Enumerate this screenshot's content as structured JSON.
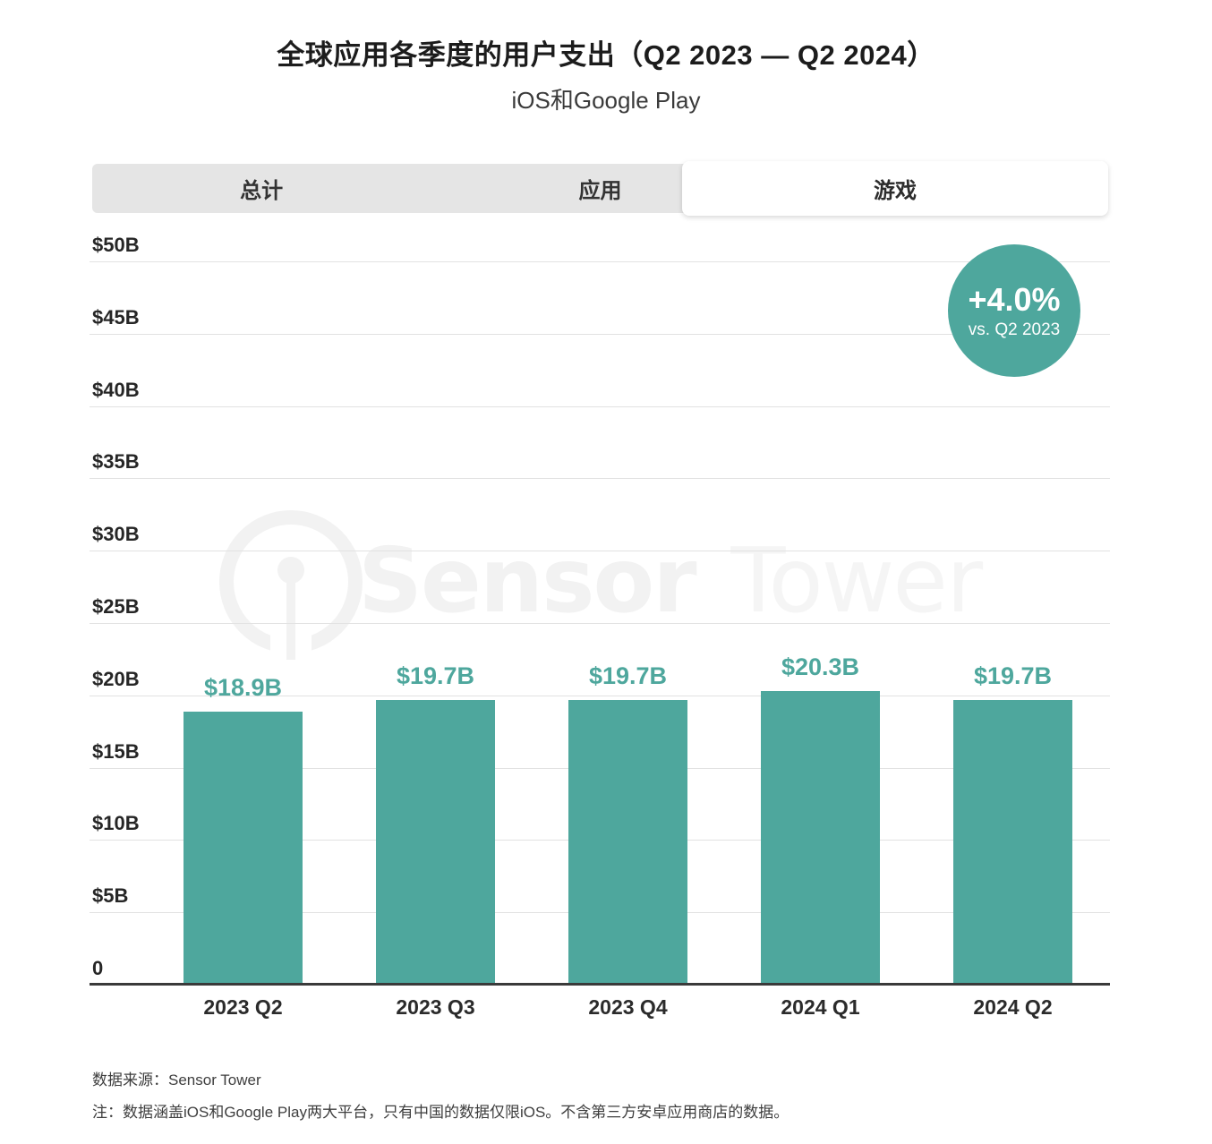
{
  "title": "全球应用各季度的用户支出（Q2 2023 — Q2 2024）",
  "subtitle": "iOS和Google Play",
  "tabs": [
    {
      "label": "总计",
      "selected": false
    },
    {
      "label": "应用",
      "selected": false
    },
    {
      "label": "游戏",
      "selected": true
    }
  ],
  "badge": {
    "value": "+4.0%",
    "comparison": "vs. Q2 2023"
  },
  "watermark": {
    "icon": "sensor-tower-logo",
    "brand_bold": "Sensor",
    "brand_light": "Tower"
  },
  "chart_data": {
    "type": "bar",
    "title": "全球应用各季度的用户支出（Q2 2023 — Q2 2024）",
    "subtitle": "iOS和Google Play",
    "categories": [
      "2023 Q2",
      "2023 Q3",
      "2023 Q4",
      "2024 Q1",
      "2024 Q2"
    ],
    "values": [
      18.9,
      19.7,
      19.7,
      20.3,
      19.7
    ],
    "value_labels": [
      "$18.9B",
      "$19.7B",
      "$19.7B",
      "$20.3B",
      "$19.7B"
    ],
    "unit": "USD billions",
    "ylim": [
      0,
      50
    ],
    "ytick_step": 5,
    "ytick_labels": [
      "$50B",
      "$45B",
      "$40B",
      "$35B",
      "$30B",
      "$25B",
      "$20B",
      "$15B",
      "$10B",
      "$5B",
      "0"
    ],
    "grid": true,
    "legend": false,
    "bar_color": "#4EA79D"
  },
  "footer": {
    "source": "数据来源：Sensor Tower",
    "note": "注：数据涵盖iOS和Google Play两大平台，只有中国的数据仅限iOS。不含第三方安卓应用商店的数据。"
  },
  "colors": {
    "bar": "#4EA79D",
    "badge": "#4EA79D",
    "value_label": "#4EA79D",
    "gridline": "#e2e2e2",
    "axis": "#3a3a3a",
    "tabbar_bg": "#e5e5e5",
    "watermark": "#f2f2f2"
  }
}
